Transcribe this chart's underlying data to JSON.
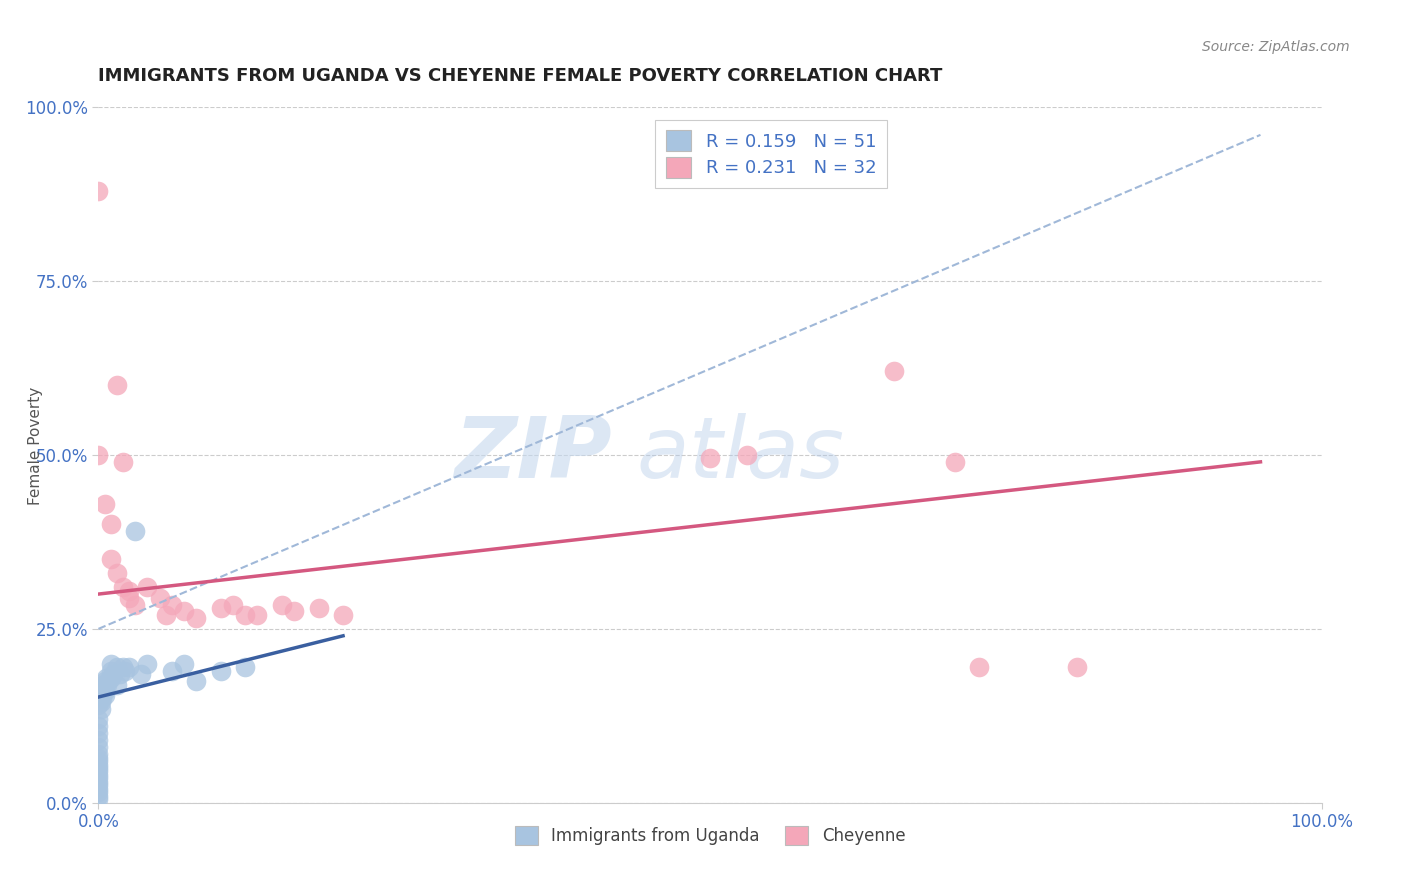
{
  "title": "IMMIGRANTS FROM UGANDA VS CHEYENNE FEMALE POVERTY CORRELATION CHART",
  "source_text": "Source: ZipAtlas.com",
  "ylabel": "Female Poverty",
  "xlim": [
    0.0,
    1.0
  ],
  "ylim": [
    0.0,
    1.0
  ],
  "xtick_labels": [
    "0.0%",
    "100.0%"
  ],
  "ytick_labels": [
    "0.0%",
    "25.0%",
    "50.0%",
    "75.0%",
    "100.0%"
  ],
  "ytick_positions": [
    0.0,
    0.25,
    0.5,
    0.75,
    1.0
  ],
  "watermark_zip": "ZIP",
  "watermark_atlas": "atlas",
  "legend_r1": "R = 0.159",
  "legend_n1": "N = 51",
  "legend_r2": "R = 0.231",
  "legend_n2": "N = 32",
  "blue_color": "#a8c4e0",
  "pink_color": "#f4a7b9",
  "blue_line_color": "#3a5fa0",
  "pink_line_color": "#d45880",
  "dashed_line_color": "#a0b8d8",
  "title_color": "#222222",
  "label_color": "#4472c4",
  "background_color": "#ffffff",
  "grid_color": "#cccccc",
  "scatter_blue": [
    [
      0.0,
      0.03
    ],
    [
      0.0,
      0.025
    ],
    [
      0.0,
      0.02
    ],
    [
      0.0,
      0.015
    ],
    [
      0.0,
      0.01
    ],
    [
      0.0,
      0.005
    ],
    [
      0.0,
      0.06
    ],
    [
      0.0,
      0.055
    ],
    [
      0.0,
      0.05
    ],
    [
      0.0,
      0.045
    ],
    [
      0.0,
      0.04
    ],
    [
      0.0,
      0.035
    ],
    [
      0.0,
      0.07
    ],
    [
      0.0,
      0.065
    ],
    [
      0.0,
      0.08
    ],
    [
      0.0,
      0.09
    ],
    [
      0.0,
      0.1
    ],
    [
      0.0,
      0.11
    ],
    [
      0.0,
      0.12
    ],
    [
      0.0,
      0.14
    ],
    [
      0.001,
      0.16
    ],
    [
      0.002,
      0.155
    ],
    [
      0.002,
      0.145
    ],
    [
      0.002,
      0.135
    ],
    [
      0.003,
      0.165
    ],
    [
      0.003,
      0.15
    ],
    [
      0.004,
      0.17
    ],
    [
      0.005,
      0.175
    ],
    [
      0.005,
      0.16
    ],
    [
      0.005,
      0.155
    ],
    [
      0.006,
      0.18
    ],
    [
      0.007,
      0.17
    ],
    [
      0.008,
      0.175
    ],
    [
      0.01,
      0.19
    ],
    [
      0.01,
      0.18
    ],
    [
      0.01,
      0.2
    ],
    [
      0.012,
      0.185
    ],
    [
      0.015,
      0.195
    ],
    [
      0.015,
      0.17
    ],
    [
      0.018,
      0.185
    ],
    [
      0.02,
      0.195
    ],
    [
      0.022,
      0.19
    ],
    [
      0.025,
      0.195
    ],
    [
      0.03,
      0.39
    ],
    [
      0.035,
      0.185
    ],
    [
      0.04,
      0.2
    ],
    [
      0.06,
      0.19
    ],
    [
      0.07,
      0.2
    ],
    [
      0.08,
      0.175
    ],
    [
      0.1,
      0.19
    ],
    [
      0.12,
      0.195
    ]
  ],
  "scatter_pink": [
    [
      0.0,
      0.88
    ],
    [
      0.015,
      0.6
    ],
    [
      0.0,
      0.5
    ],
    [
      0.02,
      0.49
    ],
    [
      0.005,
      0.43
    ],
    [
      0.01,
      0.4
    ],
    [
      0.01,
      0.35
    ],
    [
      0.015,
      0.33
    ],
    [
      0.02,
      0.31
    ],
    [
      0.025,
      0.305
    ],
    [
      0.025,
      0.295
    ],
    [
      0.03,
      0.285
    ],
    [
      0.04,
      0.31
    ],
    [
      0.05,
      0.295
    ],
    [
      0.06,
      0.285
    ],
    [
      0.055,
      0.27
    ],
    [
      0.07,
      0.275
    ],
    [
      0.08,
      0.265
    ],
    [
      0.1,
      0.28
    ],
    [
      0.11,
      0.285
    ],
    [
      0.12,
      0.27
    ],
    [
      0.13,
      0.27
    ],
    [
      0.15,
      0.285
    ],
    [
      0.16,
      0.275
    ],
    [
      0.18,
      0.28
    ],
    [
      0.2,
      0.27
    ],
    [
      0.5,
      0.495
    ],
    [
      0.53,
      0.5
    ],
    [
      0.65,
      0.62
    ],
    [
      0.7,
      0.49
    ],
    [
      0.72,
      0.195
    ],
    [
      0.8,
      0.195
    ]
  ],
  "blue_trendline": [
    [
      0.0,
      0.152
    ],
    [
      0.2,
      0.24
    ]
  ],
  "pink_trendline": [
    [
      0.0,
      0.3
    ],
    [
      0.95,
      0.49
    ]
  ],
  "dashed_trendline": [
    [
      0.0,
      0.25
    ],
    [
      0.95,
      0.96
    ]
  ]
}
